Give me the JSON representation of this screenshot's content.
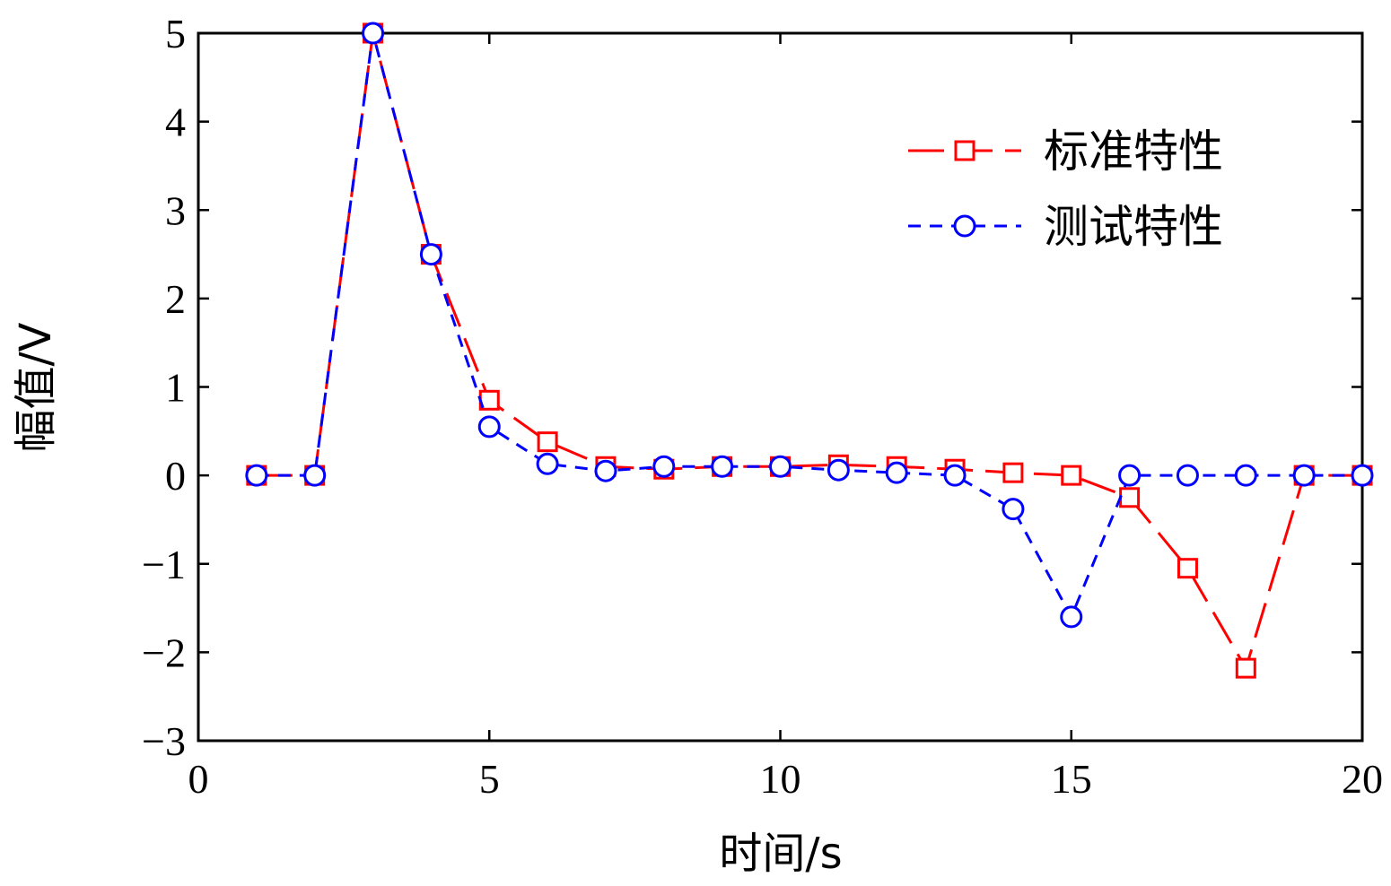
{
  "chart_data": {
    "type": "line",
    "xlabel": "时间/s",
    "ylabel": "幅值/V",
    "xlim": [
      0,
      20
    ],
    "ylim": [
      -3,
      5
    ],
    "xticks": [
      0,
      5,
      10,
      15,
      20
    ],
    "yticks": [
      -3,
      -2,
      -1,
      0,
      1,
      2,
      3,
      4,
      5
    ],
    "xtick_labels": [
      "0",
      "5",
      "10",
      "15",
      "20"
    ],
    "ytick_labels": [
      "−3",
      "−2",
      "−1",
      "0",
      "1",
      "2",
      "3",
      "4",
      "5"
    ],
    "grid": false,
    "legend_position": "top-right",
    "x": [
      1,
      2,
      3,
      4,
      5,
      6,
      7,
      8,
      9,
      10,
      11,
      12,
      13,
      14,
      15,
      16,
      17,
      18,
      19,
      20
    ],
    "series": [
      {
        "name": "标准特性",
        "color": "#ff0000",
        "marker": "square",
        "line_style": "long-dash",
        "values": [
          0,
          0,
          5,
          2.5,
          0.85,
          0.38,
          0.1,
          0.07,
          0.1,
          0.1,
          0.12,
          0.1,
          0.07,
          0.03,
          0,
          -0.25,
          -1.05,
          -2.18,
          0,
          0
        ]
      },
      {
        "name": "测试特性",
        "color": "#0000ff",
        "marker": "circle",
        "line_style": "short-dash",
        "values": [
          0,
          0,
          5,
          2.5,
          0.55,
          0.13,
          0.05,
          0.1,
          0.1,
          0.1,
          0.06,
          0.03,
          0,
          -0.38,
          -1.6,
          0,
          0,
          0,
          0,
          0
        ]
      }
    ]
  }
}
